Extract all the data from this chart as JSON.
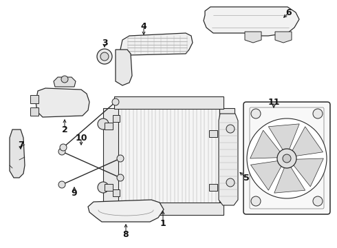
{
  "background_color": "#ffffff",
  "line_color": "#2a2a2a",
  "figsize": [
    4.9,
    3.6
  ],
  "dpi": 100
}
